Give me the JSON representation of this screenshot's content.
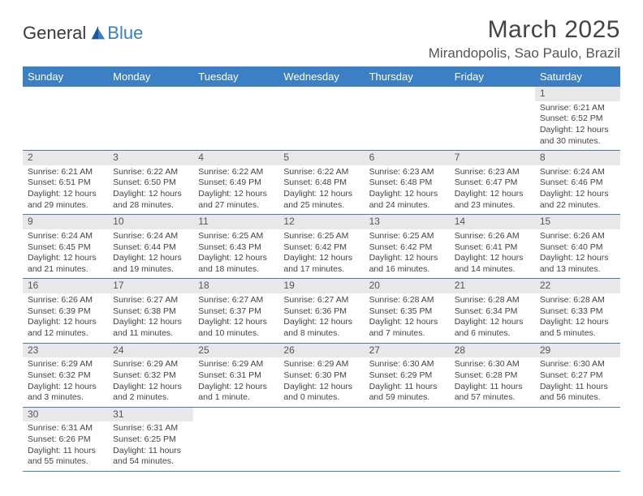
{
  "logo": {
    "part1": "General",
    "part2": "Blue"
  },
  "title": "March 2025",
  "location": "Mirandopolis, Sao Paulo, Brazil",
  "colors": {
    "header_bg": "#3b7fc4",
    "header_fg": "#ffffff",
    "daynum_bg": "#e8e8e8",
    "border": "#3b7fc4"
  },
  "weekdays": [
    "Sunday",
    "Monday",
    "Tuesday",
    "Wednesday",
    "Thursday",
    "Friday",
    "Saturday"
  ],
  "weeks": [
    [
      null,
      null,
      null,
      null,
      null,
      null,
      {
        "n": "1",
        "sr": "6:21 AM",
        "ss": "6:52 PM",
        "dl": "12 hours and 30 minutes."
      }
    ],
    [
      {
        "n": "2",
        "sr": "6:21 AM",
        "ss": "6:51 PM",
        "dl": "12 hours and 29 minutes."
      },
      {
        "n": "3",
        "sr": "6:22 AM",
        "ss": "6:50 PM",
        "dl": "12 hours and 28 minutes."
      },
      {
        "n": "4",
        "sr": "6:22 AM",
        "ss": "6:49 PM",
        "dl": "12 hours and 27 minutes."
      },
      {
        "n": "5",
        "sr": "6:22 AM",
        "ss": "6:48 PM",
        "dl": "12 hours and 25 minutes."
      },
      {
        "n": "6",
        "sr": "6:23 AM",
        "ss": "6:48 PM",
        "dl": "12 hours and 24 minutes."
      },
      {
        "n": "7",
        "sr": "6:23 AM",
        "ss": "6:47 PM",
        "dl": "12 hours and 23 minutes."
      },
      {
        "n": "8",
        "sr": "6:24 AM",
        "ss": "6:46 PM",
        "dl": "12 hours and 22 minutes."
      }
    ],
    [
      {
        "n": "9",
        "sr": "6:24 AM",
        "ss": "6:45 PM",
        "dl": "12 hours and 21 minutes."
      },
      {
        "n": "10",
        "sr": "6:24 AM",
        "ss": "6:44 PM",
        "dl": "12 hours and 19 minutes."
      },
      {
        "n": "11",
        "sr": "6:25 AM",
        "ss": "6:43 PM",
        "dl": "12 hours and 18 minutes."
      },
      {
        "n": "12",
        "sr": "6:25 AM",
        "ss": "6:42 PM",
        "dl": "12 hours and 17 minutes."
      },
      {
        "n": "13",
        "sr": "6:25 AM",
        "ss": "6:42 PM",
        "dl": "12 hours and 16 minutes."
      },
      {
        "n": "14",
        "sr": "6:26 AM",
        "ss": "6:41 PM",
        "dl": "12 hours and 14 minutes."
      },
      {
        "n": "15",
        "sr": "6:26 AM",
        "ss": "6:40 PM",
        "dl": "12 hours and 13 minutes."
      }
    ],
    [
      {
        "n": "16",
        "sr": "6:26 AM",
        "ss": "6:39 PM",
        "dl": "12 hours and 12 minutes."
      },
      {
        "n": "17",
        "sr": "6:27 AM",
        "ss": "6:38 PM",
        "dl": "12 hours and 11 minutes."
      },
      {
        "n": "18",
        "sr": "6:27 AM",
        "ss": "6:37 PM",
        "dl": "12 hours and 10 minutes."
      },
      {
        "n": "19",
        "sr": "6:27 AM",
        "ss": "6:36 PM",
        "dl": "12 hours and 8 minutes."
      },
      {
        "n": "20",
        "sr": "6:28 AM",
        "ss": "6:35 PM",
        "dl": "12 hours and 7 minutes."
      },
      {
        "n": "21",
        "sr": "6:28 AM",
        "ss": "6:34 PM",
        "dl": "12 hours and 6 minutes."
      },
      {
        "n": "22",
        "sr": "6:28 AM",
        "ss": "6:33 PM",
        "dl": "12 hours and 5 minutes."
      }
    ],
    [
      {
        "n": "23",
        "sr": "6:29 AM",
        "ss": "6:32 PM",
        "dl": "12 hours and 3 minutes."
      },
      {
        "n": "24",
        "sr": "6:29 AM",
        "ss": "6:32 PM",
        "dl": "12 hours and 2 minutes."
      },
      {
        "n": "25",
        "sr": "6:29 AM",
        "ss": "6:31 PM",
        "dl": "12 hours and 1 minute."
      },
      {
        "n": "26",
        "sr": "6:29 AM",
        "ss": "6:30 PM",
        "dl": "12 hours and 0 minutes."
      },
      {
        "n": "27",
        "sr": "6:30 AM",
        "ss": "6:29 PM",
        "dl": "11 hours and 59 minutes."
      },
      {
        "n": "28",
        "sr": "6:30 AM",
        "ss": "6:28 PM",
        "dl": "11 hours and 57 minutes."
      },
      {
        "n": "29",
        "sr": "6:30 AM",
        "ss": "6:27 PM",
        "dl": "11 hours and 56 minutes."
      }
    ],
    [
      {
        "n": "30",
        "sr": "6:31 AM",
        "ss": "6:26 PM",
        "dl": "11 hours and 55 minutes."
      },
      {
        "n": "31",
        "sr": "6:31 AM",
        "ss": "6:25 PM",
        "dl": "11 hours and 54 minutes."
      },
      null,
      null,
      null,
      null,
      null
    ]
  ],
  "labels": {
    "sunrise": "Sunrise:",
    "sunset": "Sunset:",
    "daylight": "Daylight:"
  }
}
